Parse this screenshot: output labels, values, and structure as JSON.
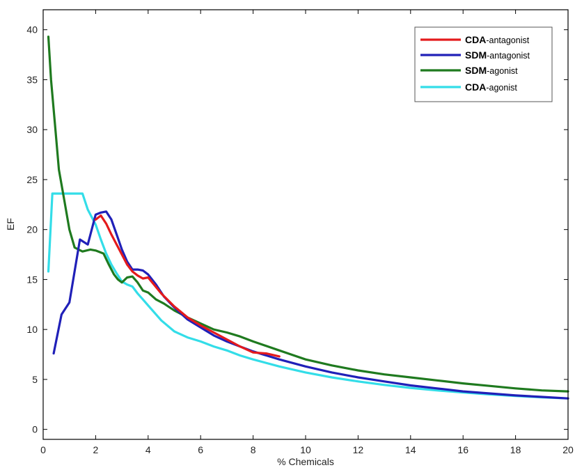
{
  "chart_data": {
    "type": "line",
    "xlabel": "% Chemicals",
    "ylabel": "EF",
    "xlim": [
      0,
      20
    ],
    "ylim": [
      -1,
      42
    ],
    "xticks": [
      0,
      2,
      4,
      6,
      8,
      10,
      12,
      14,
      16,
      18,
      20
    ],
    "yticks": [
      0,
      5,
      10,
      15,
      20,
      25,
      30,
      35,
      40
    ],
    "grid": false,
    "legend_position": "top-right",
    "series": [
      {
        "name": "CDA-antagonist",
        "legend_prefix": "CDA",
        "legend_rest": "-antagonist",
        "color": "#e41a1c",
        "x": [
          2.0,
          2.2,
          2.4,
          2.6,
          2.8,
          3.0,
          3.2,
          3.4,
          3.6,
          3.8,
          4.0,
          4.5,
          5.0,
          5.5,
          6.0,
          6.5,
          7.0,
          7.5,
          8.0,
          8.5,
          9.0
        ],
        "y": [
          21.0,
          21.4,
          20.6,
          19.5,
          18.5,
          17.5,
          16.5,
          15.8,
          15.4,
          15.1,
          15.2,
          13.6,
          12.3,
          11.2,
          10.4,
          9.7,
          9.0,
          8.3,
          7.7,
          7.6,
          7.3
        ]
      },
      {
        "name": "SDM-antagonist",
        "legend_prefix": "SDM",
        "legend_rest": "-antagonist",
        "color": "#2020b8",
        "x": [
          0.4,
          0.7,
          1.0,
          1.4,
          1.7,
          2.0,
          2.2,
          2.4,
          2.6,
          2.8,
          3.0,
          3.2,
          3.4,
          3.6,
          3.8,
          4.0,
          4.3,
          4.6,
          5.0,
          5.5,
          6.0,
          6.5,
          7.0,
          7.5,
          8.0,
          9.0,
          10.0,
          11.0,
          12.0,
          13.0,
          14.0,
          15.0,
          16.0,
          17.0,
          18.0,
          19.0,
          20.0
        ],
        "y": [
          7.6,
          11.5,
          12.7,
          19.0,
          18.5,
          21.5,
          21.7,
          21.8,
          21.0,
          19.5,
          18.0,
          16.8,
          16.0,
          16.0,
          15.9,
          15.5,
          14.5,
          13.3,
          12.2,
          11.0,
          10.2,
          9.4,
          8.8,
          8.3,
          7.8,
          7.0,
          6.3,
          5.7,
          5.2,
          4.8,
          4.4,
          4.1,
          3.8,
          3.6,
          3.4,
          3.25,
          3.1
        ]
      },
      {
        "name": "SDM-agonist",
        "legend_prefix": "SDM",
        "legend_rest": "-agonist",
        "color": "#1f7a1f",
        "x": [
          0.2,
          0.3,
          0.45,
          0.6,
          0.8,
          1.0,
          1.2,
          1.5,
          1.8,
          2.0,
          2.3,
          2.5,
          2.7,
          2.85,
          3.0,
          3.2,
          3.4,
          3.6,
          3.8,
          4.0,
          4.3,
          4.6,
          5.0,
          5.5,
          6.0,
          6.5,
          7.0,
          7.5,
          8.0,
          9.0,
          10.0,
          11.0,
          12.0,
          13.0,
          14.0,
          15.0,
          16.0,
          17.0,
          18.0,
          19.0,
          20.0
        ],
        "y": [
          39.3,
          35.0,
          30.5,
          26.0,
          23.0,
          20.0,
          18.2,
          17.8,
          18.0,
          17.9,
          17.6,
          16.5,
          15.5,
          15.0,
          14.7,
          15.2,
          15.3,
          14.7,
          13.9,
          13.7,
          13.0,
          12.6,
          11.9,
          11.2,
          10.6,
          10.0,
          9.7,
          9.3,
          8.8,
          7.9,
          7.0,
          6.4,
          5.9,
          5.5,
          5.2,
          4.9,
          4.6,
          4.35,
          4.1,
          3.9,
          3.8
        ]
      },
      {
        "name": "CDA-agonist",
        "legend_prefix": "CDA",
        "legend_rest": "-agonist",
        "color": "#33dde8",
        "x": [
          0.2,
          0.35,
          0.5,
          1.0,
          1.5,
          1.7,
          2.0,
          2.2,
          2.4,
          2.6,
          2.8,
          3.0,
          3.2,
          3.4,
          3.6,
          3.8,
          4.0,
          4.5,
          5.0,
          5.5,
          6.0,
          6.5,
          7.0,
          7.5,
          8.0,
          9.0,
          10.0,
          11.0,
          12.0,
          13.0,
          14.0,
          15.0,
          16.0,
          17.0,
          18.0,
          19.0,
          20.0
        ],
        "y": [
          15.8,
          23.6,
          23.6,
          23.6,
          23.6,
          22.0,
          20.5,
          19.0,
          17.6,
          16.5,
          15.6,
          14.8,
          14.5,
          14.3,
          13.6,
          13.0,
          12.4,
          10.9,
          9.8,
          9.2,
          8.8,
          8.3,
          7.9,
          7.4,
          7.0,
          6.3,
          5.7,
          5.2,
          4.8,
          4.45,
          4.15,
          3.9,
          3.7,
          3.5,
          3.35,
          3.2,
          3.1
        ]
      }
    ]
  }
}
